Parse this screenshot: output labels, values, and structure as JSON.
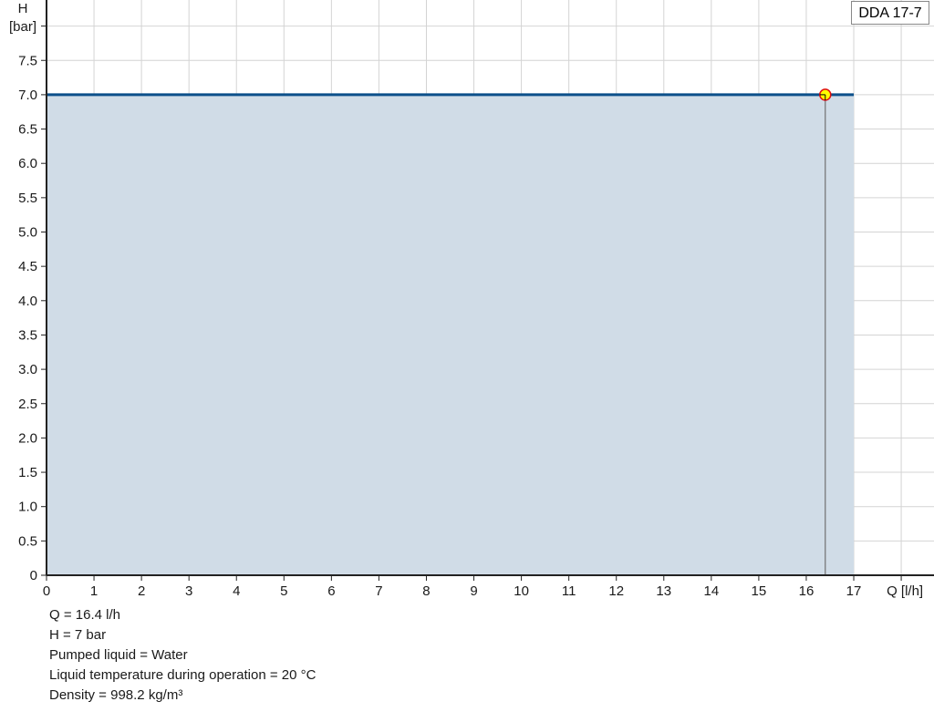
{
  "chart_data": {
    "type": "area",
    "title": "",
    "xlabel": "Q [l/h]",
    "ylabel_line1": "H",
    "ylabel_line2": "[bar]",
    "xlim": [
      0,
      18
    ],
    "ylim": [
      0,
      8
    ],
    "x_ticks": [
      "0",
      "1",
      "2",
      "3",
      "4",
      "5",
      "6",
      "7",
      "8",
      "9",
      "10",
      "11",
      "12",
      "13",
      "14",
      "15",
      "16",
      "17"
    ],
    "y_ticks": [
      "0",
      "0.5",
      "1.0",
      "1.5",
      "2.0",
      "2.5",
      "3.0",
      "3.5",
      "4.0",
      "4.5",
      "5.0",
      "5.5",
      "6.0",
      "6.5",
      "7.0",
      "7.5"
    ],
    "grid": true,
    "legend_position": "top-right",
    "series": [
      {
        "name": "DDA 17-7",
        "x": [
          0,
          17
        ],
        "y": [
          7,
          7
        ],
        "color": "#0b4f8a",
        "fill": "#d0dce7"
      }
    ],
    "operating_point": {
      "x": 16.4,
      "y": 7,
      "color": "#ffff00",
      "border": "#e01010"
    }
  },
  "info": [
    "Q = 16.4 l/h",
    "H = 7 bar",
    "Pumped liquid = Water",
    "Liquid temperature during operation = 20 °C",
    "Density = 998.2 kg/m³"
  ]
}
